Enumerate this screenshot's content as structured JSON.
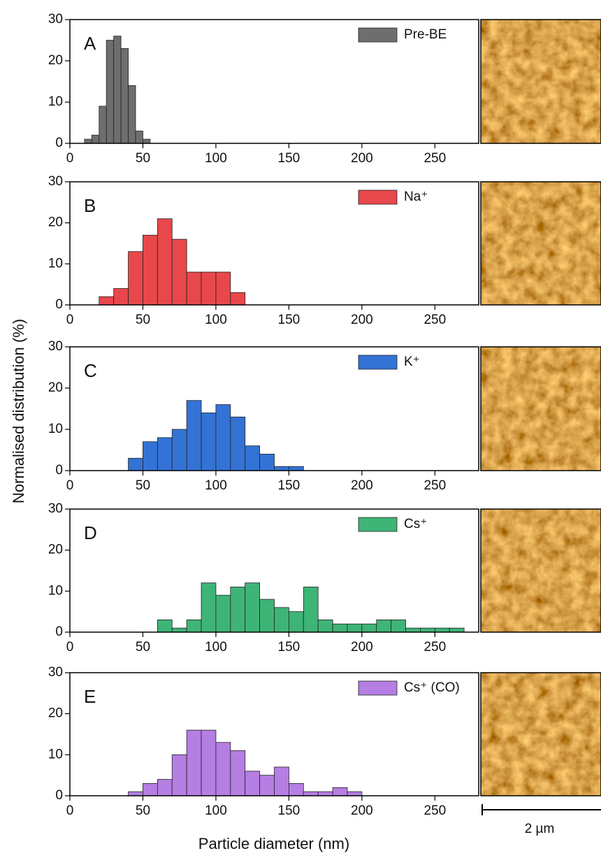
{
  "y_label": "Normalised distribution (%)",
  "x_label": "Particle diameter (nm)",
  "scale_bar": "2 µm",
  "chart_data": [
    {
      "type": "histogram",
      "label": "A",
      "legend": "upper right",
      "series": [
        {
          "name": "Pre-BE",
          "color": "#6e6e6e",
          "bins": [
            10,
            15,
            20,
            25,
            30,
            35,
            40,
            45,
            50,
            55
          ],
          "values": [
            1,
            2,
            9,
            25,
            26,
            23,
            14,
            3,
            1
          ]
        }
      ],
      "xlim": [
        0,
        280
      ],
      "ylim": [
        0,
        30
      ],
      "xticks": [
        0,
        50,
        100,
        150,
        200,
        250
      ],
      "yticks": [
        0,
        10,
        20,
        30
      ]
    },
    {
      "type": "histogram",
      "label": "B",
      "legend": "upper right",
      "series": [
        {
          "name": "Na⁺",
          "color": "#e8474b",
          "bins": [
            20,
            30,
            40,
            50,
            60,
            70,
            80,
            90,
            100,
            110,
            120
          ],
          "values": [
            2,
            4,
            13,
            17,
            21,
            16,
            8,
            8,
            8,
            3
          ]
        }
      ],
      "xlim": [
        0,
        280
      ],
      "ylim": [
        0,
        30
      ],
      "xticks": [
        0,
        50,
        100,
        150,
        200,
        250
      ],
      "yticks": [
        0,
        10,
        20,
        30
      ]
    },
    {
      "type": "histogram",
      "label": "C",
      "legend": "upper right",
      "series": [
        {
          "name": "K⁺",
          "color": "#3373d6",
          "bins": [
            40,
            50,
            60,
            70,
            80,
            90,
            100,
            110,
            120,
            130,
            140,
            150,
            160
          ],
          "values": [
            3,
            7,
            8,
            10,
            17,
            14,
            16,
            13,
            6,
            4,
            1,
            1
          ]
        }
      ],
      "xlim": [
        0,
        280
      ],
      "ylim": [
        0,
        30
      ],
      "xticks": [
        0,
        50,
        100,
        150,
        200,
        250
      ],
      "yticks": [
        0,
        10,
        20,
        30
      ]
    },
    {
      "type": "histogram",
      "label": "D",
      "legend": "upper right",
      "series": [
        {
          "name": "Cs⁺",
          "color": "#3fb477",
          "bins": [
            60,
            70,
            80,
            90,
            100,
            110,
            120,
            130,
            140,
            150,
            160,
            170,
            180,
            190,
            200,
            210,
            220,
            230,
            240,
            250,
            260,
            270
          ],
          "values": [
            3,
            1,
            3,
            12,
            9,
            11,
            12,
            8,
            6,
            5,
            11,
            3,
            2,
            2,
            2,
            3,
            3,
            1,
            1,
            1,
            1
          ]
        }
      ],
      "xlim": [
        0,
        280
      ],
      "ylim": [
        0,
        30
      ],
      "xticks": [
        0,
        50,
        100,
        150,
        200,
        250
      ],
      "yticks": [
        0,
        10,
        20,
        30
      ]
    },
    {
      "type": "histogram",
      "label": "E",
      "legend": "upper right",
      "series": [
        {
          "name": "Cs⁺ (CO)",
          "color": "#b57ee3",
          "bins": [
            40,
            50,
            60,
            70,
            80,
            90,
            100,
            110,
            120,
            130,
            140,
            150,
            160,
            170,
            180,
            190,
            200
          ],
          "values": [
            1,
            3,
            4,
            10,
            16,
            16,
            13,
            11,
            6,
            5,
            7,
            3,
            1,
            1,
            2,
            1
          ]
        }
      ],
      "xlim": [
        0,
        280
      ],
      "ylim": [
        0,
        30
      ],
      "xticks": [
        0,
        50,
        100,
        150,
        200,
        250
      ],
      "yticks": [
        0,
        10,
        20,
        30
      ]
    }
  ]
}
